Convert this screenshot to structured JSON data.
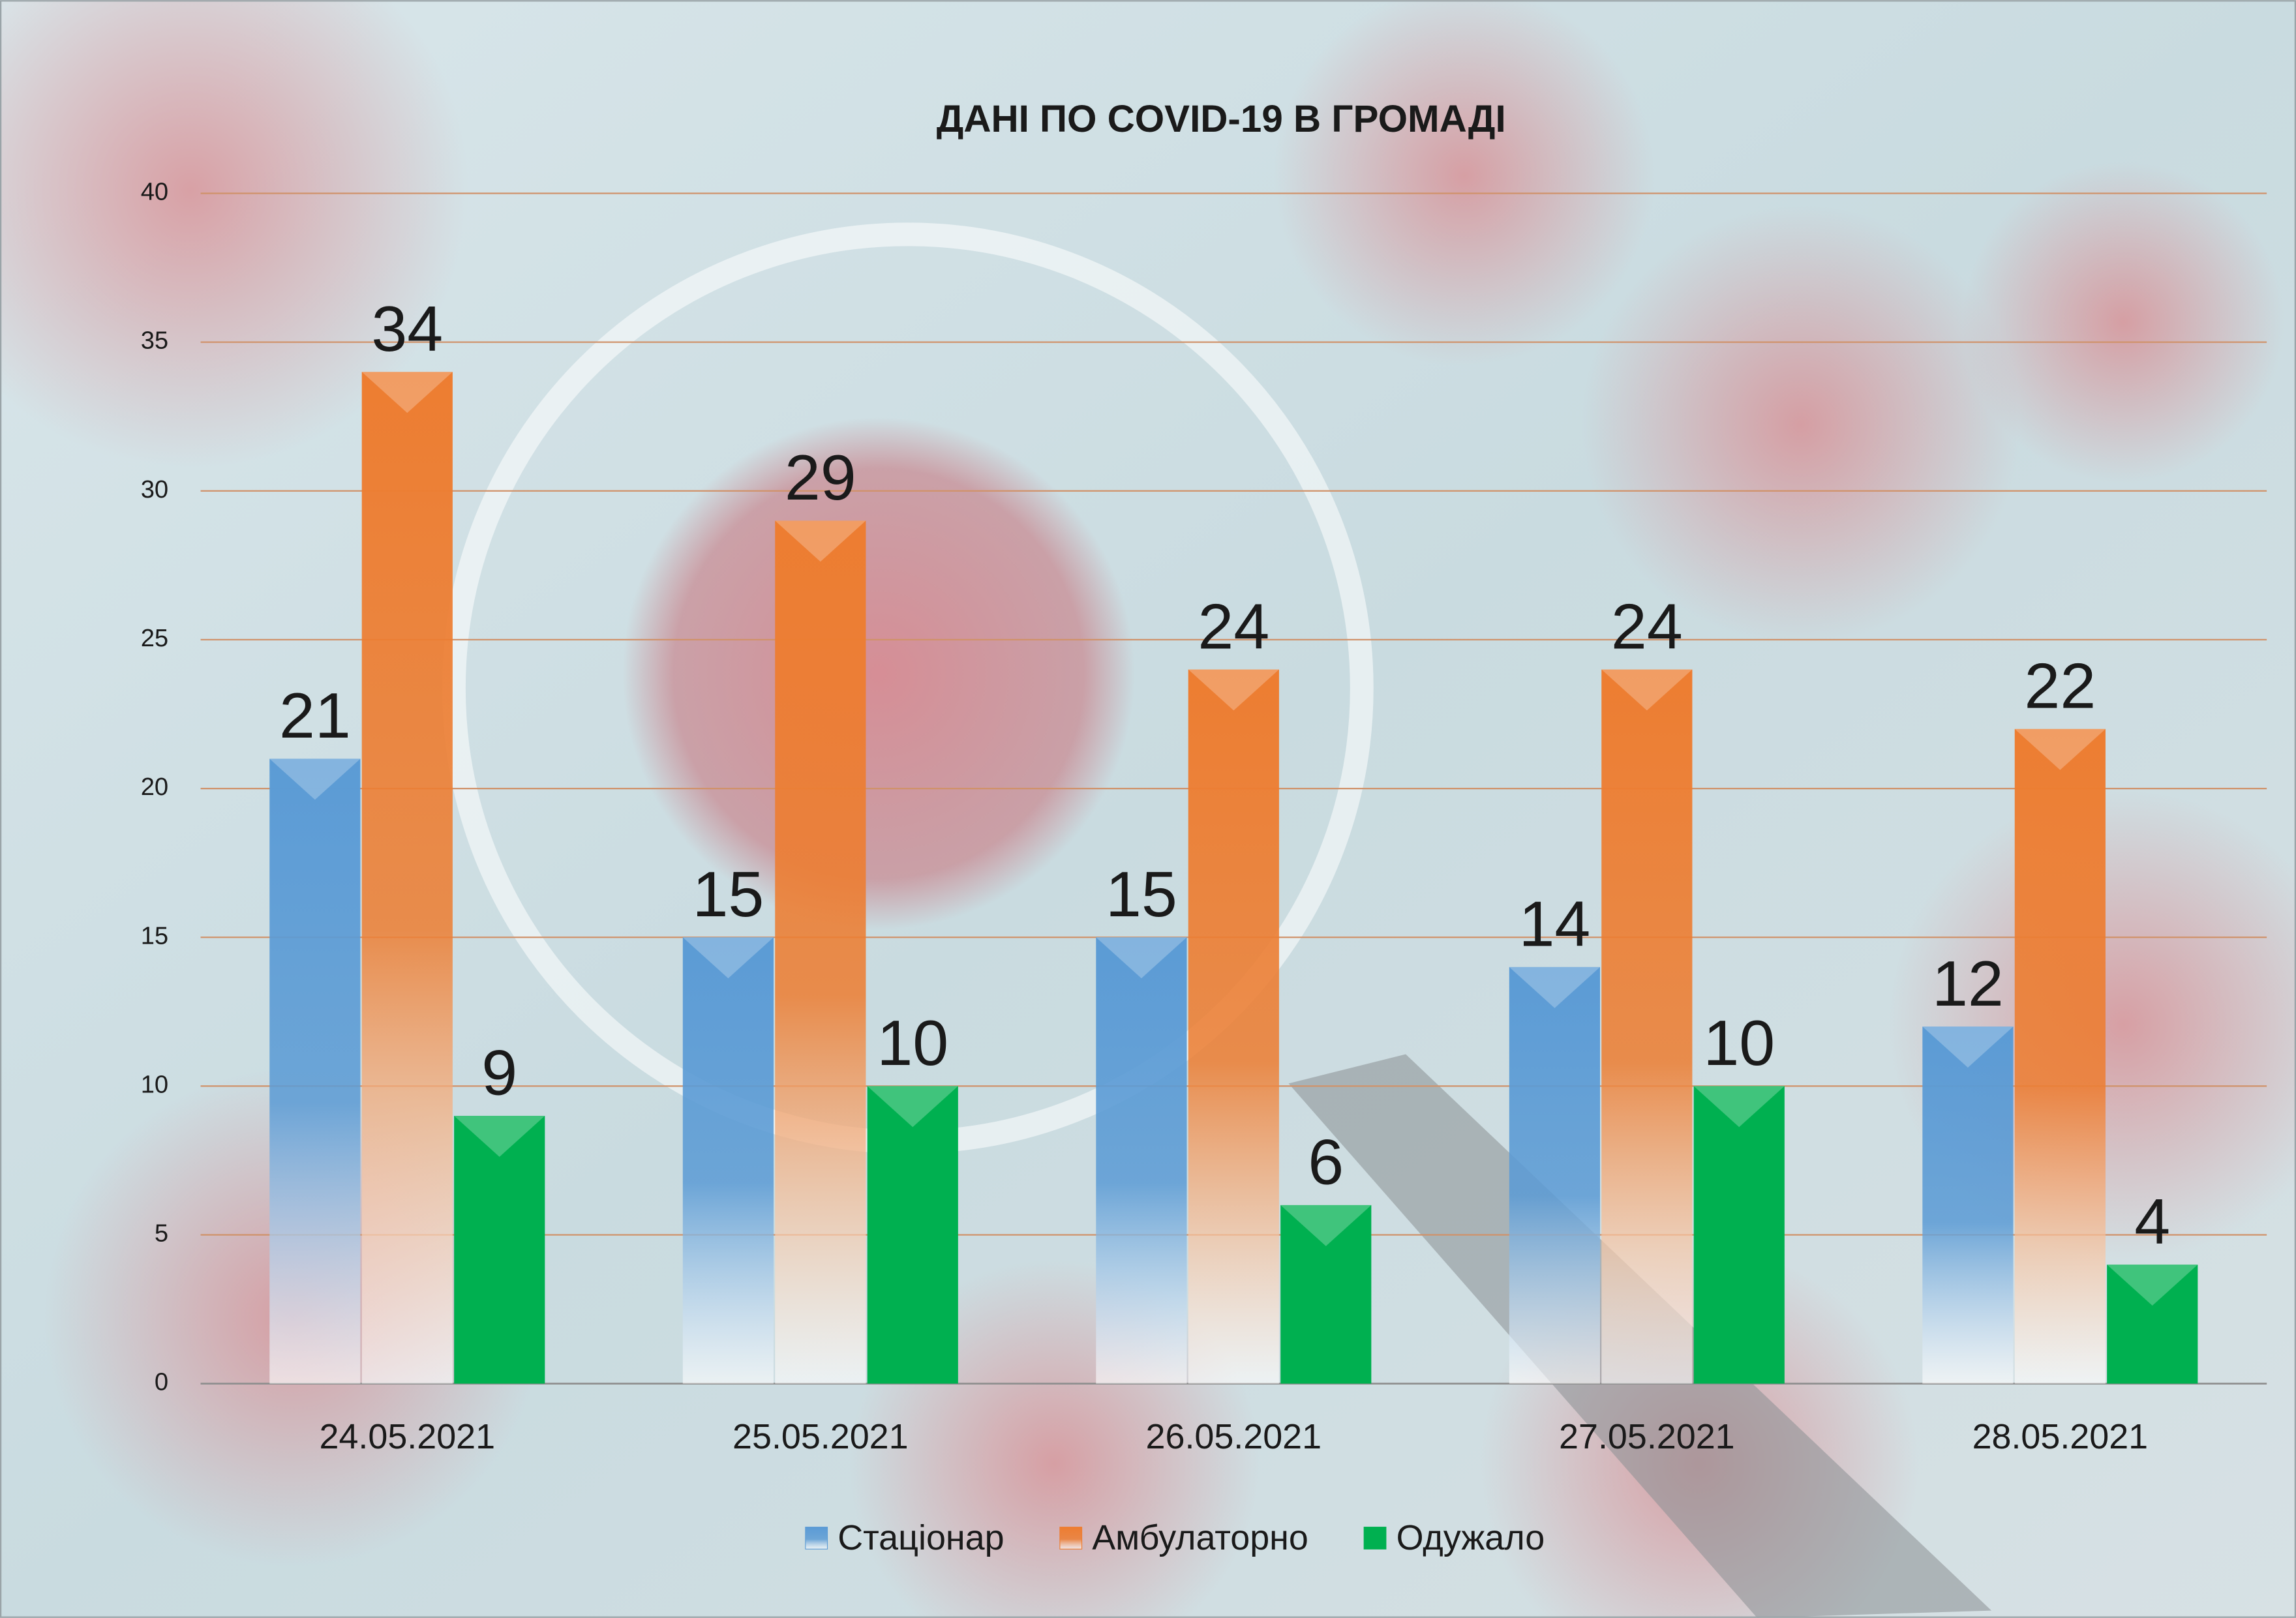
{
  "chart_data": {
    "type": "bar",
    "title": "ДАНІ ПО COVID-19 В ГРОМАДІ",
    "categories": [
      "24.05.2021",
      "25.05.2021",
      "26.05.2021",
      "27.05.2021",
      "28.05.2021"
    ],
    "series": [
      {
        "name": "Стаціонар",
        "color": "#5b9bd5",
        "values": [
          21,
          15,
          15,
          14,
          12
        ]
      },
      {
        "name": "Амбулаторно",
        "color": "#ed7d31",
        "values": [
          34,
          29,
          24,
          24,
          22
        ]
      },
      {
        "name": "Одужало",
        "color": "#00b050",
        "values": [
          9,
          10,
          6,
          10,
          4
        ]
      }
    ],
    "ylim": [
      0,
      40
    ],
    "yticks": [
      0,
      5,
      10,
      15,
      20,
      25,
      30,
      35,
      40
    ],
    "grid": true,
    "legend": "bottom"
  }
}
